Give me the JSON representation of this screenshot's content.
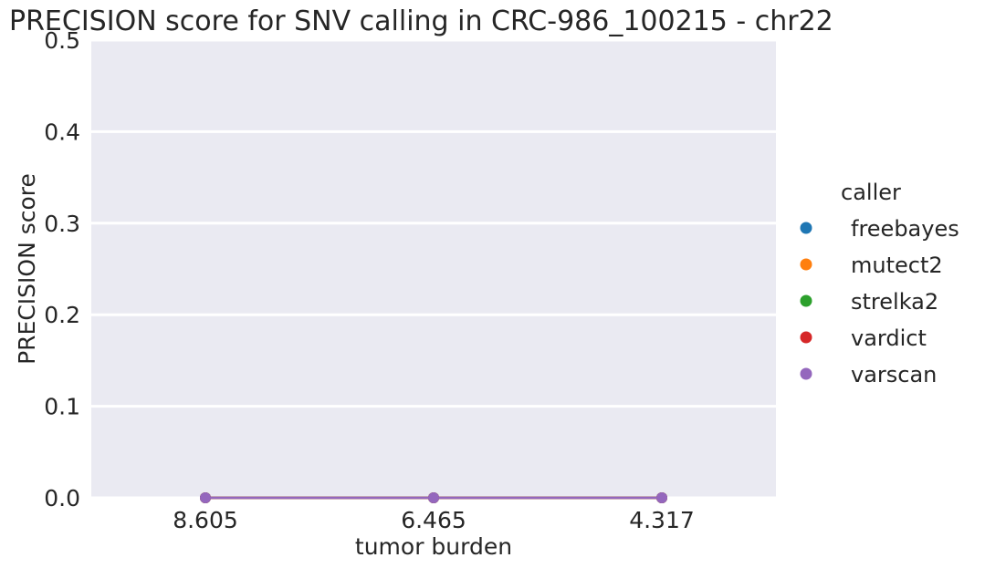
{
  "chart_data": {
    "type": "line",
    "title": "PRECISION score for SNV calling in CRC-986_100215 - chr22",
    "xlabel": "tumor burden",
    "ylabel": "PRECISION score",
    "categories": [
      "8.605",
      "6.465",
      "4.317"
    ],
    "ylim": [
      0,
      0.5
    ],
    "yticks": [
      "0.0",
      "0.1",
      "0.2",
      "0.3",
      "0.4",
      "0.5"
    ],
    "grid": true,
    "legend": {
      "title": "caller",
      "placement": "right"
    },
    "series": [
      {
        "name": "freebayes",
        "values": [
          0,
          0,
          0
        ],
        "color": "#1f77b4"
      },
      {
        "name": "mutect2",
        "values": [
          0,
          0,
          0
        ],
        "color": "#ff7f0e"
      },
      {
        "name": "strelka2",
        "values": [
          0,
          0,
          0
        ],
        "color": "#2ca02c"
      },
      {
        "name": "vardict",
        "values": [
          0,
          0,
          0
        ],
        "color": "#d62728"
      },
      {
        "name": "varscan",
        "values": [
          0,
          0,
          0
        ],
        "color": "#9467bd"
      }
    ],
    "background": "#eaeaf2",
    "gridcolor": "#ffffff"
  }
}
